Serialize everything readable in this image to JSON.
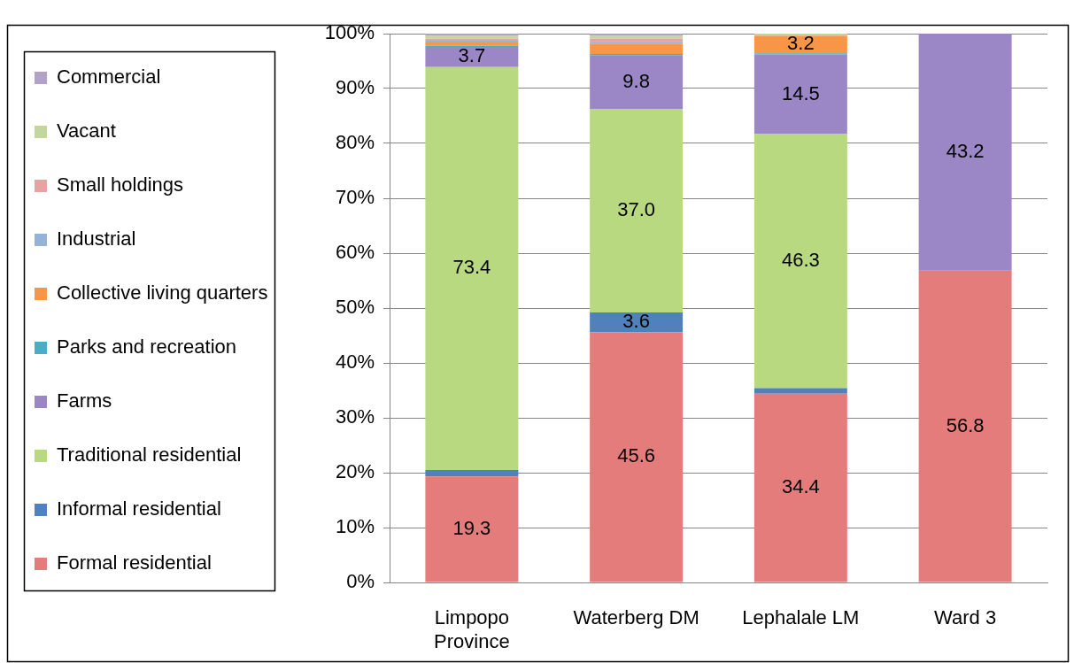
{
  "chart_data": {
    "type": "bar",
    "stacked": true,
    "categories": [
      "Limpopo Province",
      "Waterberg DM",
      "Lephalale LM",
      "Ward 3"
    ],
    "series": [
      {
        "name": "Formal residential",
        "color": "#e47c7c",
        "values": [
          19.3,
          45.6,
          34.4,
          56.8
        ],
        "value_labels": [
          "19.3",
          "45.6",
          "34.4",
          "56.8"
        ]
      },
      {
        "name": "Informal residential",
        "color": "#4f81bd",
        "values": [
          1.2,
          3.6,
          1.0,
          null
        ],
        "value_labels": [
          null,
          "3.6",
          null,
          null
        ]
      },
      {
        "name": "Traditional residential",
        "color": "#b8d97f",
        "values": [
          73.4,
          37.0,
          46.3,
          null
        ],
        "value_labels": [
          "73.4",
          "37.0",
          "46.3",
          null
        ]
      },
      {
        "name": "Farms",
        "color": "#9b87c5",
        "values": [
          3.7,
          9.8,
          14.5,
          43.2
        ],
        "value_labels": [
          "3.7",
          "9.8",
          "14.5",
          "43.2"
        ]
      },
      {
        "name": "Parks and recreation",
        "color": "#4bacc6",
        "values": [
          0.2,
          0.3,
          0.2,
          null
        ]
      },
      {
        "name": "Collective living quarters",
        "color": "#f79646",
        "values": [
          0.6,
          1.8,
          3.2,
          null
        ],
        "value_labels": [
          null,
          null,
          "3.2",
          null
        ]
      },
      {
        "name": "Industrial",
        "color": "#95b3d7",
        "values": [
          0.3,
          0.4,
          null,
          null
        ]
      },
      {
        "name": "Small holdings",
        "color": "#e6a3a3",
        "values": [
          0.4,
          0.6,
          0.2,
          null
        ]
      },
      {
        "name": "Vacant",
        "color": "#c3d69b",
        "values": [
          0.5,
          0.5,
          0.2,
          null
        ]
      },
      {
        "name": "Commercial",
        "color": "#b3a2c7",
        "values": [
          0.4,
          0.4,
          null,
          null
        ]
      }
    ],
    "ylim": [
      0,
      100
    ],
    "yticks": [
      {
        "value": 0,
        "label": "0%"
      },
      {
        "value": 10,
        "label": "10%"
      },
      {
        "value": 20,
        "label": "20%"
      },
      {
        "value": 30,
        "label": "30%"
      },
      {
        "value": 40,
        "label": "40%"
      },
      {
        "value": 50,
        "label": "50%"
      },
      {
        "value": 60,
        "label": "60%"
      },
      {
        "value": 70,
        "label": "70%"
      },
      {
        "value": 80,
        "label": "80%"
      },
      {
        "value": 90,
        "label": "90%"
      },
      {
        "value": 100,
        "label": "100%"
      }
    ],
    "grid": "y",
    "legend": "left"
  }
}
